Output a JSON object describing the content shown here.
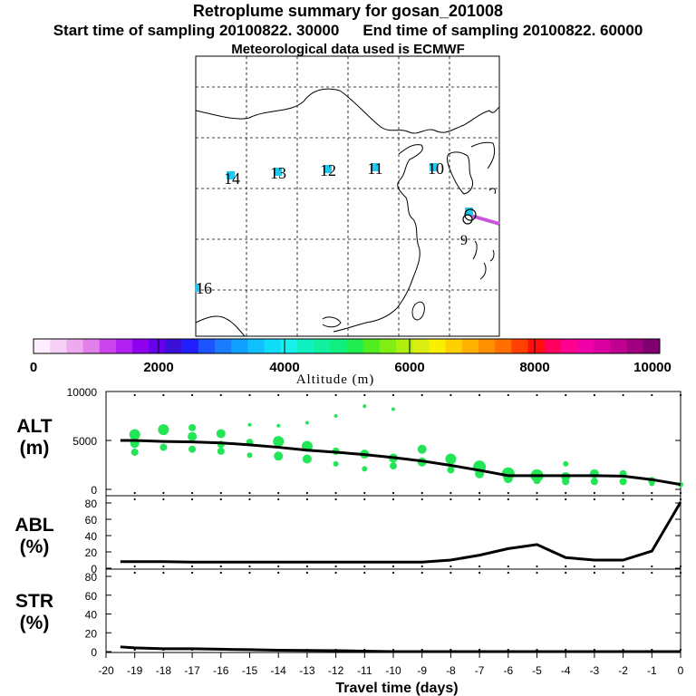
{
  "header": {
    "title": "Retroplume summary for gosan_201008",
    "start_label": "Start time of sampling 20100822. 30000",
    "end_label": "End time of sampling 20100822. 60000",
    "met_label": "Meteorological data used is ECMWF"
  },
  "map": {
    "day_markers": [
      {
        "day": "9"
      },
      {
        "day": "10"
      },
      {
        "day": "11"
      },
      {
        "day": "12"
      },
      {
        "day": "13"
      },
      {
        "day": "14"
      },
      {
        "day": "16"
      }
    ],
    "trajectory_color": "#cc55dd",
    "marker_color": "#1fc8f0"
  },
  "colorbar": {
    "label": "Altitude (m)",
    "ticks": [
      "0",
      "2000",
      "4000",
      "6000",
      "8000",
      "10000"
    ],
    "colors": [
      "#ffeeff",
      "#f6d0f6",
      "#eeaaee",
      "#e080e8",
      "#cc44ee",
      "#b020f0",
      "#9000f0",
      "#6600ee",
      "#3a10d8",
      "#2020ff",
      "#1c55ff",
      "#1a7cff",
      "#10a0ff",
      "#10c0ff",
      "#10dcf8",
      "#18f0ee",
      "#10f0c0",
      "#10f0a0",
      "#10ee80",
      "#20ee50",
      "#50ee20",
      "#80ee10",
      "#b0ee10",
      "#d8ee10",
      "#f8f000",
      "#ffd000",
      "#ffb000",
      "#ff9000",
      "#ff7000",
      "#ff4000",
      "#ff1010",
      "#ff0060",
      "#ff0090",
      "#f000a8",
      "#d800a0",
      "#c00090",
      "#a00080",
      "#800070"
    ]
  },
  "chart_data": [
    {
      "type": "scatter",
      "name": "ALT",
      "ylabel_line1": "ALT",
      "ylabel_line2": "(m)",
      "ylim": [
        0,
        10000
      ],
      "yticks": [
        "10000",
        "5000",
        "0"
      ],
      "xlim": [
        -20,
        0
      ],
      "point_color": "#22e655",
      "median_line": {
        "x": [
          -19.5,
          -19,
          -18,
          -17,
          -16,
          -15,
          -14,
          -13,
          -12,
          -11,
          -10,
          -9,
          -8,
          -7,
          -6,
          -5,
          -4,
          -3,
          -2,
          -1,
          0
        ],
        "y": [
          5000,
          5000,
          4900,
          4850,
          4750,
          4550,
          4300,
          4000,
          3800,
          3550,
          3250,
          2900,
          2450,
          1950,
          1400,
          1400,
          1400,
          1400,
          1350,
          1000,
          500
        ]
      },
      "points": [
        {
          "x": -19,
          "y": 5600,
          "s": 6
        },
        {
          "x": -19,
          "y": 4700,
          "s": 5
        },
        {
          "x": -19,
          "y": 3800,
          "s": 4
        },
        {
          "x": -18,
          "y": 6100,
          "s": 6
        },
        {
          "x": -18,
          "y": 4300,
          "s": 4
        },
        {
          "x": -17,
          "y": 6300,
          "s": 4
        },
        {
          "x": -17,
          "y": 5400,
          "s": 5
        },
        {
          "x": -17,
          "y": 4100,
          "s": 4
        },
        {
          "x": -16,
          "y": 5700,
          "s": 5
        },
        {
          "x": -16,
          "y": 4600,
          "s": 4
        },
        {
          "x": -16,
          "y": 3900,
          "s": 4
        },
        {
          "x": -15,
          "y": 6600,
          "s": 2
        },
        {
          "x": -15,
          "y": 4800,
          "s": 4
        },
        {
          "x": -15,
          "y": 3500,
          "s": 3
        },
        {
          "x": -14,
          "y": 6500,
          "s": 2
        },
        {
          "x": -14,
          "y": 4900,
          "s": 6
        },
        {
          "x": -14,
          "y": 3400,
          "s": 5
        },
        {
          "x": -13,
          "y": 6800,
          "s": 2
        },
        {
          "x": -13,
          "y": 4400,
          "s": 6
        },
        {
          "x": -13,
          "y": 3100,
          "s": 5
        },
        {
          "x": -12,
          "y": 7500,
          "s": 2
        },
        {
          "x": -12,
          "y": 3900,
          "s": 4
        },
        {
          "x": -12,
          "y": 2600,
          "s": 3
        },
        {
          "x": -11,
          "y": 8500,
          "s": 2
        },
        {
          "x": -11,
          "y": 3600,
          "s": 5
        },
        {
          "x": -11,
          "y": 2100,
          "s": 3
        },
        {
          "x": -10,
          "y": 8200,
          "s": 2
        },
        {
          "x": -10,
          "y": 3200,
          "s": 5
        },
        {
          "x": -10,
          "y": 2400,
          "s": 4
        },
        {
          "x": -9,
          "y": 4100,
          "s": 5
        },
        {
          "x": -9,
          "y": 2800,
          "s": 5
        },
        {
          "x": -8,
          "y": 3100,
          "s": 6
        },
        {
          "x": -8,
          "y": 2000,
          "s": 4
        },
        {
          "x": -7,
          "y": 2300,
          "s": 7
        },
        {
          "x": -7,
          "y": 1600,
          "s": 5
        },
        {
          "x": -6,
          "y": 1600,
          "s": 7
        },
        {
          "x": -6,
          "y": 1100,
          "s": 5
        },
        {
          "x": -5,
          "y": 1400,
          "s": 7
        },
        {
          "x": -5,
          "y": 900,
          "s": 4
        },
        {
          "x": -4,
          "y": 2600,
          "s": 3
        },
        {
          "x": -4,
          "y": 1300,
          "s": 5
        },
        {
          "x": -4,
          "y": 800,
          "s": 4
        },
        {
          "x": -3,
          "y": 1600,
          "s": 5
        },
        {
          "x": -3,
          "y": 800,
          "s": 4
        },
        {
          "x": -2,
          "y": 1600,
          "s": 4
        },
        {
          "x": -2,
          "y": 800,
          "s": 4
        },
        {
          "x": -1,
          "y": 900,
          "s": 4
        },
        {
          "x": -1,
          "y": 600,
          "s": 3
        },
        {
          "x": 0,
          "y": 500,
          "s": 3
        }
      ]
    },
    {
      "type": "line",
      "name": "ABL",
      "ylabel_line1": "ABL",
      "ylabel_line2": "(%)",
      "ylim": [
        0,
        90
      ],
      "yticks": [
        "80",
        "60",
        "40",
        "20",
        "0"
      ],
      "xlim": [
        -20,
        0
      ],
      "x": [
        -19.5,
        -19,
        -18,
        -17,
        -16,
        -15,
        -14,
        -13,
        -12,
        -11,
        -10,
        -9,
        -8,
        -7,
        -6,
        -5,
        -4,
        -3,
        -2,
        -1,
        0
      ],
      "y": [
        8,
        8,
        8,
        7.5,
        7.5,
        7.5,
        7.5,
        7.5,
        7.5,
        7.5,
        7.5,
        7.5,
        10,
        16,
        24,
        29,
        13,
        10,
        10,
        21,
        81
      ]
    },
    {
      "type": "line",
      "name": "STR",
      "ylabel_line1": "STR",
      "ylabel_line2": "(%)",
      "ylim": [
        0,
        90
      ],
      "yticks": [
        "80",
        "60",
        "40",
        "20",
        "0"
      ],
      "xlim": [
        -20,
        0
      ],
      "x": [
        -19.5,
        -19,
        -18,
        -17,
        -16,
        -15,
        -14,
        -13,
        -12,
        -11,
        -10,
        -9,
        -8,
        -7,
        -6,
        -5,
        -4,
        -3,
        -2,
        -1,
        0
      ],
      "y": [
        5,
        4,
        3,
        3,
        2.5,
        2,
        1.5,
        1.2,
        1,
        0.5,
        0,
        0,
        0,
        0,
        0,
        0,
        0,
        0,
        0,
        0,
        0
      ]
    }
  ],
  "xaxis": {
    "label": "Travel time (days)",
    "ticks": [
      "-20",
      "-19",
      "-18",
      "-17",
      "-16",
      "-15",
      "-14",
      "-13",
      "-12",
      "-11",
      "-10",
      "-9",
      "-8",
      "-7",
      "-6",
      "-5",
      "-4",
      "-3",
      "-2",
      "-1",
      "0"
    ]
  }
}
